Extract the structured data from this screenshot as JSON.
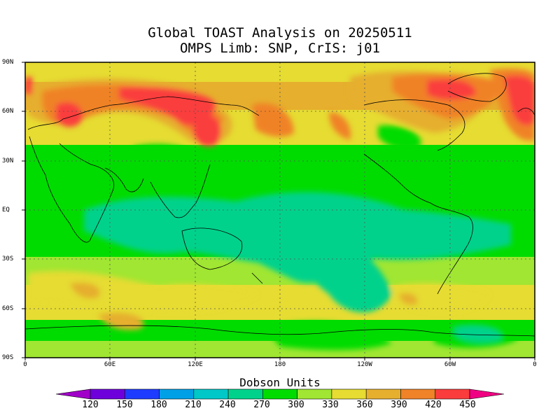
{
  "title_line1": "Global TOAST Analysis on 20250511",
  "title_line2": "OMPS Limb: SNP,  CrIS: j01",
  "y_ticks": [
    "90N",
    "60N",
    "30N",
    "EQ",
    "30S",
    "60S",
    "90S"
  ],
  "x_ticks": [
    "0",
    "60E",
    "120E",
    "180",
    "120W",
    "60W",
    "0"
  ],
  "colorbar": {
    "unit_label": "Dobson Units",
    "labels": [
      "120",
      "150",
      "180",
      "210",
      "240",
      "270",
      "300",
      "330",
      "360",
      "390",
      "420",
      "450"
    ],
    "colors": [
      "#a000c8",
      "#6e00dc",
      "#1e3cff",
      "#00a0e6",
      "#00c8c8",
      "#00d28c",
      "#00dc00",
      "#a0e632",
      "#e6dc32",
      "#e6af2d",
      "#f08228",
      "#fa3c3c",
      "#f00082"
    ]
  },
  "chart_data": {
    "type": "heatmap",
    "map_projection": "equirectangular",
    "title": "Global TOAST Analysis on 20250511 / OMPS Limb: SNP,  CrIS: j01",
    "variable_label": "Dobson Units",
    "colorbar_levels": [
      120,
      150,
      180,
      210,
      240,
      270,
      300,
      330,
      360,
      390,
      420,
      450
    ],
    "lon_range": [
      0,
      360
    ],
    "lat_range": [
      -90,
      90
    ],
    "gridlines": true,
    "regions": [
      {
        "region": "Tropics / equatorial Pacific",
        "value_range": [
          240,
          270
        ]
      },
      {
        "region": "Northern high latitudes (Siberia, Arctic, Greenland, North Atlantic)",
        "value_range": [
          390,
          450
        ]
      },
      {
        "region": "Southern mid-latitudes",
        "value_range": [
          330,
          390
        ]
      },
      {
        "region": "Antarctic coast (South Atlantic sector)",
        "value_range": [
          240,
          270
        ]
      }
    ]
  }
}
